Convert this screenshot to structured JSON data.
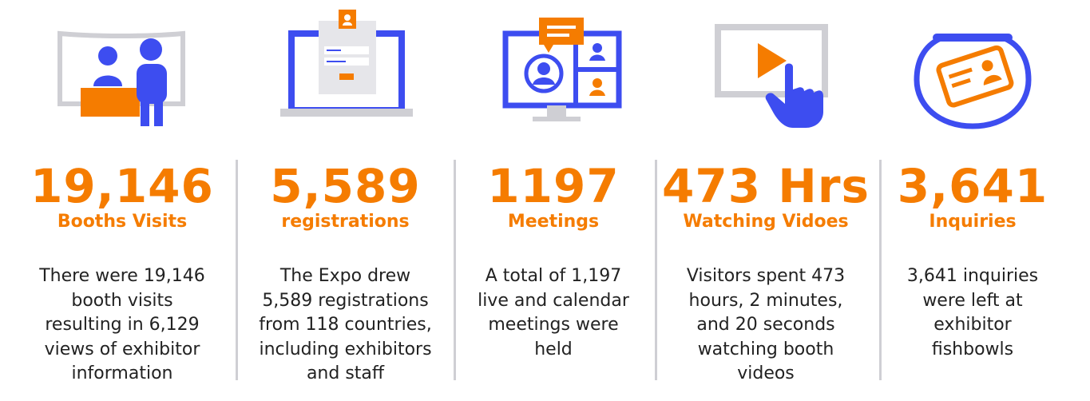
{
  "colors": {
    "orange": "#f57c00",
    "blue": "#3d4df0",
    "gray": "#cfcfd4",
    "text": "#222222"
  },
  "stats": [
    {
      "icon": "booth-icon",
      "value": "19,146",
      "label": "Booths Visits",
      "lines": [
        "There were 19,146",
        "booth visits",
        "resulting in 6,129",
        "views of exhibitor",
        "information"
      ]
    },
    {
      "icon": "registration-laptop-icon",
      "value": "5,589",
      "label": "registrations",
      "lines": [
        "The Expo drew",
        "5,589 registrations",
        "from 118 countries,",
        "including exhibitors",
        "and staff"
      ]
    },
    {
      "icon": "video-meeting-icon",
      "value": "1197",
      "label": "Meetings",
      "lines": [
        "A total of 1,197",
        "live and calendar",
        "meetings were",
        "held"
      ]
    },
    {
      "icon": "video-play-click-icon",
      "value": "473 Hrs",
      "label": "Watching Vidoes",
      "lines": [
        "Visitors spent 473",
        "hours, 2 minutes,",
        "and 20 seconds",
        "watching booth",
        "videos"
      ]
    },
    {
      "icon": "fishbowl-card-icon",
      "value": "3,641",
      "label": "Inquiries",
      "lines": [
        "3,641 inquiries",
        "were left at",
        "exhibitor",
        "fishbowls"
      ]
    }
  ]
}
